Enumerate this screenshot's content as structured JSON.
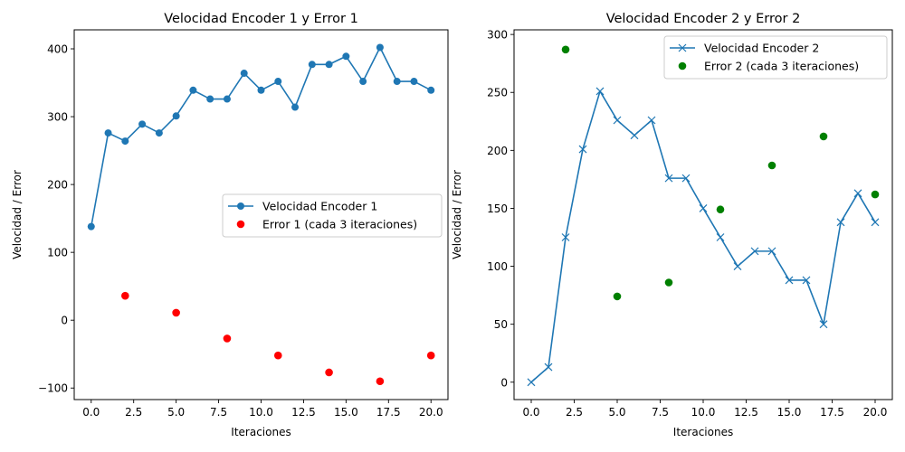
{
  "chart_data": [
    {
      "type": "line",
      "title": "Velocidad Encoder 1 y Error 1",
      "xlabel": "Iteraciones",
      "ylabel": "Velocidad / Error",
      "xlim": [
        -1,
        21
      ],
      "ylim": [
        -117,
        428
      ],
      "xticks": [
        0,
        2.5,
        5,
        7.5,
        10,
        12.5,
        15,
        17.5,
        20
      ],
      "xtick_labels": [
        "0.0",
        "2.5",
        "5.0",
        "7.5",
        "10.0",
        "12.5",
        "15.0",
        "17.5",
        "20.0"
      ],
      "yticks": [
        -100,
        0,
        100,
        200,
        300,
        400
      ],
      "ytick_labels": [
        "−100",
        "0",
        "100",
        "200",
        "300",
        "400"
      ],
      "legend_position": "center-right",
      "grid": false,
      "series": [
        {
          "name": "Velocidad Encoder 1",
          "kind": "line",
          "marker": "circle",
          "color": "#1f77b4",
          "x": [
            0,
            1,
            2,
            3,
            4,
            5,
            6,
            7,
            8,
            9,
            10,
            11,
            12,
            13,
            14,
            15,
            16,
            17,
            18,
            19,
            20
          ],
          "y": [
            138,
            276,
            264,
            289,
            276,
            301,
            339,
            326,
            326,
            364,
            339,
            352,
            314,
            377,
            377,
            389,
            352,
            402,
            352,
            352,
            339
          ]
        },
        {
          "name": "Error 1 (cada 3 iteraciones)",
          "kind": "scatter",
          "marker": "circle",
          "color": "#ff0000",
          "x": [
            2,
            5,
            8,
            11,
            14,
            17,
            20
          ],
          "y": [
            36,
            11,
            -27,
            -52,
            -77,
            -90,
            -52
          ]
        }
      ]
    },
    {
      "type": "line",
      "title": "Velocidad Encoder 2 y Error 2",
      "xlabel": "Iteraciones",
      "ylabel": "Velocidad / Error",
      "xlim": [
        -1,
        21
      ],
      "ylim": [
        -15,
        304
      ],
      "xticks": [
        0,
        2.5,
        5,
        7.5,
        10,
        12.5,
        15,
        17.5,
        20
      ],
      "xtick_labels": [
        "0.0",
        "2.5",
        "5.0",
        "7.5",
        "10.0",
        "12.5",
        "15.0",
        "17.5",
        "20.0"
      ],
      "yticks": [
        0,
        50,
        100,
        150,
        200,
        250,
        300
      ],
      "ytick_labels": [
        "0",
        "50",
        "100",
        "150",
        "200",
        "250",
        "300"
      ],
      "legend_position": "top-right",
      "grid": false,
      "series": [
        {
          "name": "Velocidad Encoder 2",
          "kind": "line",
          "marker": "x",
          "color": "#1f77b4",
          "x": [
            0,
            1,
            2,
            3,
            4,
            5,
            6,
            7,
            8,
            9,
            10,
            11,
            12,
            13,
            14,
            15,
            16,
            17,
            18,
            19,
            20
          ],
          "y": [
            0,
            13,
            125,
            201,
            251,
            226,
            213,
            226,
            176,
            176,
            150,
            125,
            100,
            113,
            113,
            88,
            88,
            50,
            138,
            163,
            138
          ]
        },
        {
          "name": "Error 2 (cada 3 iteraciones)",
          "kind": "scatter",
          "marker": "circle",
          "color": "#008000",
          "x": [
            2,
            5,
            8,
            11,
            14,
            17,
            20
          ],
          "y": [
            287,
            74,
            86,
            149,
            187,
            212,
            162
          ]
        }
      ]
    }
  ]
}
